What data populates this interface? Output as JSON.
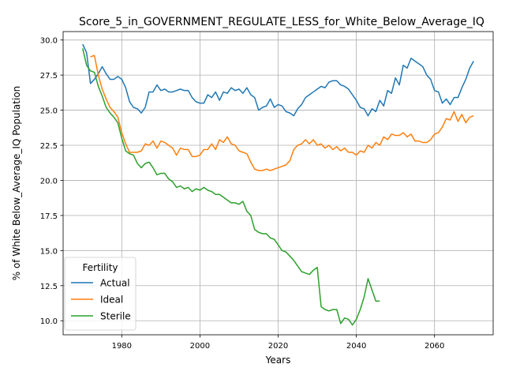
{
  "chart_data": {
    "type": "line",
    "title": "Score_5_in_GOVERNMENT_REGULATE_LESS_for_White_Below_Average_IQ",
    "xlabel": "Years",
    "ylabel": "% of White Below_Average_IQ Population",
    "xlim": [
      1965,
      2075
    ],
    "ylim": [
      9.0,
      30.6
    ],
    "xticks": [
      1980,
      2000,
      2020,
      2040,
      2060
    ],
    "yticks": [
      10.0,
      12.5,
      15.0,
      17.5,
      20.0,
      22.5,
      25.0,
      27.5,
      30.0
    ],
    "grid": true,
    "legend": {
      "title": "Fertility",
      "position": "lower-left"
    },
    "series": [
      {
        "name": "Actual",
        "color": "#1f77b4",
        "x": [
          1970,
          1971,
          1972,
          1973,
          1974,
          1975,
          1976,
          1977,
          1978,
          1979,
          1980,
          1981,
          1982,
          1983,
          1984,
          1985,
          1986,
          1987,
          1988,
          1989,
          1990,
          1991,
          1992,
          1993,
          1994,
          1995,
          1996,
          1997,
          1998,
          1999,
          2000,
          2001,
          2002,
          2003,
          2004,
          2005,
          2006,
          2007,
          2008,
          2009,
          2010,
          2011,
          2012,
          2013,
          2014,
          2015,
          2016,
          2017,
          2018,
          2019,
          2020,
          2021,
          2022,
          2023,
          2024,
          2025,
          2026,
          2027,
          2028,
          2029,
          2030,
          2031,
          2032,
          2033,
          2034,
          2035,
          2036,
          2037,
          2038,
          2039,
          2040,
          2041,
          2042,
          2043,
          2044,
          2045,
          2046,
          2047,
          2048,
          2049,
          2050,
          2051,
          2052,
          2053,
          2054,
          2055,
          2056,
          2057,
          2058,
          2059,
          2060,
          2061,
          2062,
          2063,
          2064,
          2065,
          2066,
          2067,
          2068,
          2069,
          2070
        ],
        "values": [
          29.7,
          29.1,
          26.9,
          27.2,
          27.6,
          28.1,
          27.6,
          27.2,
          27.2,
          27.4,
          27.2,
          26.6,
          25.6,
          25.2,
          25.1,
          24.8,
          25.2,
          26.3,
          26.3,
          26.8,
          26.4,
          26.5,
          26.3,
          26.3,
          26.4,
          26.5,
          26.4,
          26.4,
          25.9,
          25.6,
          25.5,
          25.5,
          26.1,
          25.9,
          26.3,
          25.7,
          26.3,
          26.2,
          26.6,
          26.4,
          26.5,
          26.2,
          26.6,
          26.1,
          25.9,
          25.0,
          25.2,
          25.3,
          25.8,
          25.2,
          25.4,
          25.3,
          24.9,
          24.8,
          24.6,
          25.1,
          25.4,
          25.9,
          26.1,
          26.3,
          26.5,
          26.7,
          26.6,
          27.0,
          27.1,
          27.1,
          26.8,
          26.7,
          26.5,
          26.1,
          25.7,
          25.2,
          25.1,
          24.6,
          25.1,
          24.9,
          25.7,
          25.3,
          26.4,
          26.2,
          27.3,
          26.8,
          28.2,
          28.0,
          28.7,
          28.5,
          28.3,
          28.1,
          27.5,
          27.2,
          26.4,
          26.3,
          25.5,
          25.8,
          25.4,
          25.9,
          25.9,
          26.6,
          27.2,
          28.0,
          28.5
        ]
      },
      {
        "name": "Ideal",
        "color": "#ff7f0e",
        "x": [
          1972,
          1973,
          1974,
          1975,
          1976,
          1977,
          1978,
          1979,
          1980,
          1981,
          1982,
          1983,
          1984,
          1985,
          1986,
          1987,
          1988,
          1989,
          1990,
          1991,
          1992,
          1993,
          1994,
          1995,
          1996,
          1997,
          1998,
          1999,
          2000,
          2001,
          2002,
          2003,
          2004,
          2005,
          2006,
          2007,
          2008,
          2009,
          2010,
          2011,
          2012,
          2013,
          2014,
          2015,
          2016,
          2017,
          2018,
          2019,
          2020,
          2021,
          2022,
          2023,
          2024,
          2025,
          2026,
          2027,
          2028,
          2029,
          2030,
          2031,
          2032,
          2033,
          2034,
          2035,
          2036,
          2037,
          2038,
          2039,
          2040,
          2041,
          2042,
          2043,
          2044,
          2045,
          2046,
          2047,
          2048,
          2049,
          2050,
          2051,
          2052,
          2053,
          2054,
          2055,
          2056,
          2057,
          2058,
          2059,
          2060,
          2061,
          2062,
          2063,
          2064,
          2065,
          2066,
          2067,
          2068,
          2069,
          2070
        ],
        "values": [
          28.8,
          28.9,
          27.5,
          26.5,
          25.8,
          25.2,
          24.9,
          24.5,
          23.4,
          22.6,
          22.0,
          22.0,
          22.0,
          22.1,
          22.6,
          22.5,
          22.8,
          22.3,
          22.8,
          22.7,
          22.5,
          22.3,
          21.8,
          22.3,
          22.2,
          22.2,
          21.7,
          21.7,
          21.8,
          22.2,
          22.2,
          22.6,
          22.2,
          22.9,
          22.7,
          23.1,
          22.6,
          22.5,
          22.1,
          22.0,
          21.9,
          21.3,
          20.8,
          20.7,
          20.7,
          20.8,
          20.7,
          20.8,
          20.9,
          21.0,
          21.1,
          21.4,
          22.2,
          22.5,
          22.6,
          22.9,
          22.6,
          22.9,
          22.5,
          22.6,
          22.3,
          22.5,
          22.2,
          22.4,
          22.1,
          22.3,
          22.0,
          22.0,
          21.8,
          22.1,
          22.0,
          22.5,
          22.3,
          22.7,
          22.5,
          23.1,
          22.9,
          23.3,
          23.2,
          23.2,
          23.4,
          23.1,
          23.3,
          22.8,
          22.8,
          22.7,
          22.7,
          22.9,
          23.3,
          23.4,
          23.8,
          24.4,
          24.3,
          24.9,
          24.2,
          24.7,
          24.1,
          24.5,
          24.6
        ]
      },
      {
        "name": "Sterile",
        "color": "#2ca02c",
        "x": [
          1970,
          1971,
          1972,
          1973,
          1974,
          1975,
          1976,
          1977,
          1978,
          1979,
          1980,
          1981,
          1982,
          1983,
          1984,
          1985,
          1986,
          1987,
          1988,
          1989,
          1990,
          1991,
          1992,
          1993,
          1994,
          1995,
          1996,
          1997,
          1998,
          1999,
          2000,
          2001,
          2002,
          2003,
          2004,
          2005,
          2006,
          2007,
          2008,
          2009,
          2010,
          2011,
          2012,
          2013,
          2014,
          2015,
          2016,
          2017,
          2018,
          2019,
          2020,
          2021,
          2022,
          2023,
          2024,
          2025,
          2026,
          2027,
          2028,
          2029,
          2030,
          2031,
          2032,
          2033,
          2034,
          2035,
          2036,
          2037,
          2038,
          2039,
          2040,
          2041,
          2042,
          2043,
          2044,
          2045,
          2046
        ],
        "values": [
          29.4,
          28.2,
          27.8,
          27.7,
          26.7,
          26.0,
          25.2,
          24.8,
          24.5,
          24.1,
          23.0,
          22.1,
          21.9,
          21.8,
          21.2,
          20.9,
          21.2,
          21.3,
          20.9,
          20.4,
          20.5,
          20.5,
          20.1,
          19.9,
          19.5,
          19.6,
          19.4,
          19.5,
          19.2,
          19.4,
          19.3,
          19.5,
          19.3,
          19.2,
          19.0,
          19.0,
          18.8,
          18.6,
          18.4,
          18.4,
          18.3,
          18.5,
          17.8,
          17.5,
          16.5,
          16.3,
          16.2,
          16.2,
          15.9,
          15.8,
          15.4,
          15.0,
          14.9,
          14.6,
          14.3,
          13.9,
          13.5,
          13.4,
          13.3,
          13.6,
          13.8,
          11.0,
          10.8,
          10.7,
          10.8,
          10.8,
          9.8,
          10.2,
          10.1,
          9.7,
          10.1,
          10.8,
          11.7,
          13.0,
          12.2,
          11.4,
          11.4
        ]
      }
    ]
  }
}
